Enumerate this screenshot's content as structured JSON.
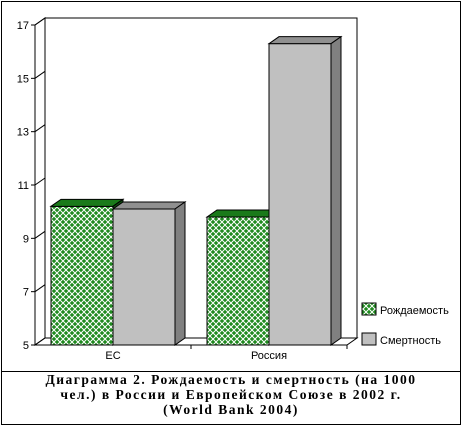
{
  "chart_data": {
    "type": "bar",
    "categories": [
      "ЕС",
      "Россия"
    ],
    "series": [
      {
        "name": "Рождаемость",
        "values": [
          10.2,
          9.8
        ],
        "color": "#1f7a1f",
        "pattern": "crosshatch-green"
      },
      {
        "name": "Смертность",
        "values": [
          10.1,
          16.3
        ],
        "color": "#c0c0c0",
        "pattern": "solid-gray"
      }
    ],
    "ylim": [
      5,
      17
    ],
    "yticks": [
      "5",
      "7",
      "9",
      "11",
      "13",
      "15",
      "17"
    ],
    "grid": false,
    "legend": "bottom-right",
    "style": "3d"
  },
  "caption": {
    "line1": "Диаграмма 2. Рождаемость и смертность (на 1000",
    "line2": "чел.) в России и Европейском Союзе в 2002 г.",
    "line3": "(World Bank 2004)"
  }
}
